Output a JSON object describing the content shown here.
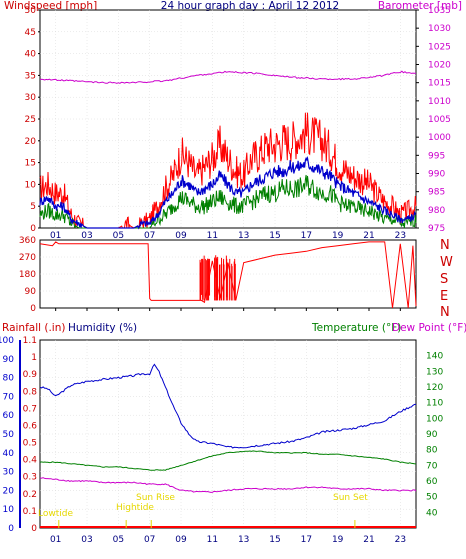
{
  "header": {
    "left_title": "Windspeed [mph]",
    "center_title": "24 hour graph day : April 12 2012",
    "right_title": "Barometer [mb]"
  },
  "direction_labels": [
    "N",
    "W",
    "S",
    "E",
    "N"
  ],
  "lower_header": {
    "rainfall": "Rainfall (.in)",
    "humidity": "Humidity (%)",
    "temperature": "Temperature (°F)",
    "dewpoint": "Dew Point (°F)"
  },
  "annotations": {
    "low_tide": "Lowtide",
    "high_tide": "Hightide",
    "sun_rise": "Sun Rise",
    "sun_set": "Sun Set"
  },
  "colors": {
    "wind_gust": "#ff0000",
    "wind_avg": "#0000cc",
    "wind_speed": "#008000",
    "barometer": "#cc00cc",
    "direction": "#ff0000",
    "humidity": "#0000cc",
    "temperature": "#008000",
    "dewpoint": "#cc00cc",
    "rain": "#ff0000",
    "annotation": "#ffff00"
  },
  "chart_data": [
    {
      "type": "line",
      "title": "24 hour graph day : April 12 2012",
      "xlabel": "",
      "x_ticks": [
        "01",
        "03",
        "05",
        "07",
        "09",
        "11",
        "13",
        "15",
        "17",
        "19",
        "21",
        "23"
      ],
      "ylabel_left": "Windspeed [mph]",
      "ylim_left": [
        0,
        50
      ],
      "yticks_left": [
        0,
        5,
        10,
        15,
        20,
        25,
        30,
        35,
        40,
        45,
        50
      ],
      "ylabel_right": "Barometer [mb]",
      "ylim_right": [
        975,
        1035
      ],
      "yticks_right": [
        975,
        980,
        985,
        990,
        995,
        1000,
        1005,
        1010,
        1015,
        1020,
        1025,
        1030,
        1035
      ],
      "series": [
        {
          "axis": "left",
          "hours": [
            0,
            0.5,
            1,
            1.5,
            2,
            2.5,
            3,
            4,
            5,
            5.5,
            6,
            6.5,
            7,
            7.5,
            8,
            8.5,
            9,
            9.5,
            10,
            10.5,
            11,
            11.5,
            12,
            12.5,
            13,
            13.5,
            14,
            14.5,
            15,
            15.5,
            16,
            16.5,
            17,
            17.5,
            18,
            18.5,
            19,
            19.5,
            20,
            20.5,
            21,
            21.5,
            22,
            22.5,
            23,
            23.5,
            24
          ],
          "values": [
            9,
            10,
            8,
            8,
            3,
            1,
            0,
            0,
            0,
            1,
            0,
            1,
            2,
            5,
            9,
            12,
            17,
            15,
            12,
            14,
            16,
            19,
            16,
            13,
            12,
            16,
            17,
            19,
            19,
            20,
            20,
            21,
            22,
            21,
            20,
            18,
            15,
            13,
            12,
            11,
            10,
            8,
            6,
            5,
            3,
            4,
            5
          ]
        },
        {
          "axis": "left",
          "hours": [
            0,
            0.5,
            1,
            1.5,
            2,
            2.5,
            3,
            4,
            5,
            5.5,
            6,
            6.5,
            7,
            7.5,
            8,
            8.5,
            9,
            9.5,
            10,
            10.5,
            11,
            11.5,
            12,
            12.5,
            13,
            13.5,
            14,
            14.5,
            15,
            15.5,
            16,
            16.5,
            17,
            17.5,
            18,
            18.5,
            19,
            19.5,
            20,
            20.5,
            21,
            21.5,
            22,
            22.5,
            23,
            23.5,
            24
          ],
          "values": [
            6,
            7,
            5,
            5,
            2,
            1,
            0,
            0,
            0,
            0,
            0,
            1,
            1,
            3,
            6,
            8,
            11,
            10,
            8,
            9,
            10,
            12,
            10,
            8,
            8,
            10,
            11,
            12,
            13,
            13,
            14,
            14,
            15,
            14,
            13,
            12,
            10,
            9,
            8,
            7,
            6,
            5,
            4,
            3,
            2,
            2,
            3
          ]
        },
        {
          "axis": "left",
          "hours": [
            0,
            0.5,
            1,
            1.5,
            2,
            2.5,
            3,
            4,
            5,
            5.5,
            6,
            6.5,
            7,
            7.5,
            8,
            8.5,
            9,
            9.5,
            10,
            10.5,
            11,
            11.5,
            12,
            12.5,
            13,
            13.5,
            14,
            14.5,
            15,
            15.5,
            16,
            16.5,
            17,
            17.5,
            18,
            18.5,
            19,
            19.5,
            20,
            20.5,
            21,
            21.5,
            22,
            22.5,
            23,
            23.5,
            24
          ],
          "values": [
            3,
            4,
            3,
            3,
            1,
            0,
            0,
            0,
            0,
            0,
            0,
            0,
            0,
            2,
            3,
            5,
            7,
            6,
            5,
            5,
            6,
            7,
            6,
            5,
            5,
            6,
            7,
            8,
            8,
            9,
            9,
            9,
            10,
            9,
            8,
            8,
            6,
            5,
            5,
            4,
            4,
            3,
            2,
            2,
            1,
            1,
            2
          ]
        },
        {
          "name": "Barometer [mb]",
          "axis": "right",
          "hours": [
            0,
            2,
            4,
            6,
            8,
            10,
            12,
            14,
            16,
            18,
            20,
            22,
            23,
            24
          ],
          "values": [
            1016,
            1015.5,
            1015,
            1015,
            1015.5,
            1017,
            1018,
            1017.5,
            1016.5,
            1016,
            1016,
            1017,
            1018,
            1017.5
          ]
        }
      ]
    },
    {
      "type": "line",
      "title": "",
      "x_ticks": [
        "01",
        "03",
        "05",
        "07",
        "09",
        "11",
        "13",
        "15",
        "17",
        "19",
        "21",
        "23"
      ],
      "ylabel_left": "",
      "ylim_left": [
        0,
        360
      ],
      "yticks_left": [
        0,
        90,
        180,
        270,
        360
      ],
      "y_right_labels": [
        "N",
        "W",
        "S",
        "E",
        "N"
      ],
      "series": [
        {
          "axis": "left",
          "hours": [
            0,
            0.8,
            1.0,
            1.2,
            6.9,
            7.0,
            7.1,
            10.3,
            10.5,
            11,
            11.5,
            12,
            12.5,
            13,
            14,
            15,
            16,
            17,
            18,
            19,
            20,
            21,
            22,
            22.5,
            23,
            23.5,
            23.8,
            24
          ],
          "values": [
            340,
            330,
            350,
            340,
            340,
            50,
            40,
            40,
            30,
            250,
            50,
            240,
            40,
            240,
            260,
            280,
            290,
            300,
            320,
            330,
            340,
            350,
            350,
            0,
            340,
            0,
            330,
            10
          ]
        }
      ]
    },
    {
      "type": "line",
      "title": "",
      "x_ticks": [
        "01",
        "03",
        "05",
        "07",
        "09",
        "11",
        "13",
        "15",
        "17",
        "19",
        "21",
        "23"
      ],
      "ylabel_left": "Humidity (%)",
      "ylim_left": [
        0,
        100
      ],
      "yticks_left": [
        0,
        10,
        20,
        30,
        40,
        50,
        60,
        70,
        80,
        90,
        100
      ],
      "rain_axis_label": "Rainfall (.in)",
      "ylim_rain": [
        0,
        1.1
      ],
      "yticks_rain": [
        0,
        0.1,
        0.2,
        0.3,
        0.4,
        0.5,
        0.6,
        0.7,
        0.8,
        0.9,
        1,
        1.1
      ],
      "ylabel_right": "Temperature (°F)",
      "ylim_right": [
        30,
        150
      ],
      "yticks_right": [
        40,
        50,
        60,
        70,
        80,
        90,
        100,
        110,
        120,
        130,
        140
      ],
      "series": [
        {
          "name": "Humidity (%)",
          "axis": "left",
          "hours": [
            0,
            0.5,
            1,
            2,
            3,
            4,
            5,
            6,
            6.5,
            7,
            7.3,
            7.6,
            8,
            8.5,
            9,
            9.5,
            10,
            11,
            12,
            13,
            14,
            15,
            16,
            17,
            18,
            19,
            20,
            21,
            22,
            23,
            24
          ],
          "values": [
            75,
            74,
            70,
            76,
            78,
            79,
            80,
            81,
            82,
            82,
            87,
            83,
            75,
            65,
            56,
            50,
            46,
            45,
            43,
            43,
            44,
            45,
            46,
            48,
            51,
            52,
            53,
            55,
            57,
            62,
            66
          ]
        },
        {
          "name": "Temperature (°F)",
          "axis": "right",
          "hours": [
            0,
            1,
            2,
            3,
            4,
            5,
            6,
            7,
            8,
            9,
            10,
            11,
            12,
            13,
            14,
            15,
            16,
            17,
            18,
            19,
            20,
            21,
            22,
            23,
            24
          ],
          "values": [
            72,
            72,
            71,
            70,
            69,
            69,
            68,
            67,
            67,
            70,
            73,
            76,
            78,
            79,
            79,
            78,
            78,
            78,
            77,
            77,
            76,
            75,
            74,
            72,
            71
          ]
        },
        {
          "name": "Dew Point (°F)",
          "axis": "right",
          "hours": [
            0,
            1,
            2,
            3,
            4,
            5,
            6,
            7,
            8,
            8.5,
            9,
            10,
            11,
            12,
            13,
            14,
            15,
            16,
            17,
            18,
            19,
            20,
            21,
            22,
            23,
            24
          ],
          "values": [
            62,
            61,
            60,
            60,
            59,
            59,
            59,
            58,
            58,
            56,
            54,
            53,
            53,
            54,
            55,
            55,
            55,
            55,
            56,
            56,
            55,
            55,
            55,
            54,
            54,
            54
          ]
        },
        {
          "name": "Rainfall (.in)",
          "axis": "rain",
          "hours": [
            0,
            24
          ],
          "values": [
            0,
            0
          ]
        }
      ],
      "annotations": [
        {
          "label": "Lowtide",
          "hour": 1.2
        },
        {
          "label": "Hightide",
          "hour": 5.5
        },
        {
          "label": "Sun Rise",
          "hour": 7.1
        },
        {
          "label": "Sun Set",
          "hour": 20.1
        }
      ]
    }
  ]
}
